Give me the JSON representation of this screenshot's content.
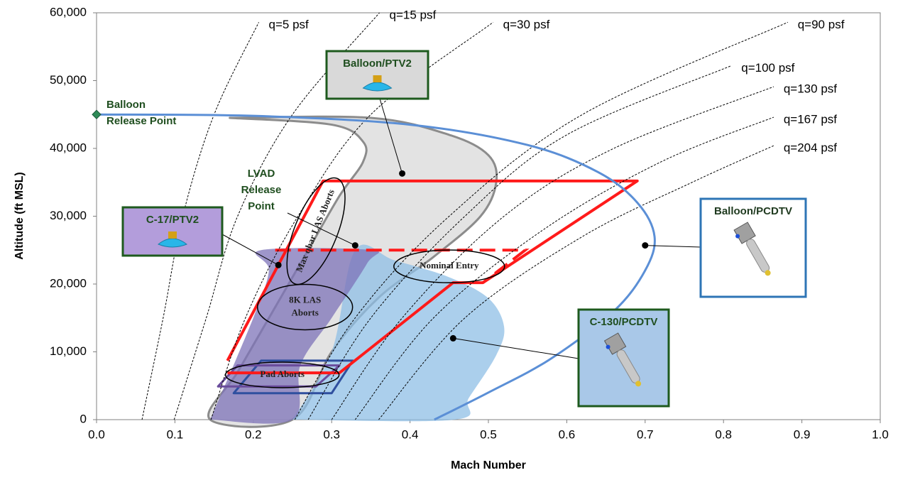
{
  "chart_data": {
    "type": "line",
    "x_label": "Mach Number",
    "y_label": "Altitude (ft MSL)",
    "xlim": [
      0,
      1
    ],
    "ylim": [
      0,
      60000
    ],
    "xticks": [
      {
        "value": 0,
        "label": "0.0"
      },
      0.1,
      0.2,
      0.3,
      0.4,
      0.5,
      0.6,
      0.7,
      0.8,
      0.9,
      {
        "value": 1,
        "label": "1.0"
      }
    ],
    "yticks": [
      0,
      {
        "value": 10000,
        "label": "10,000"
      },
      {
        "value": 20000,
        "label": "20,000"
      },
      {
        "value": 30000,
        "label": "30,000"
      },
      {
        "value": 40000,
        "label": "40,000"
      },
      {
        "value": 50000,
        "label": "50,000"
      },
      {
        "value": 60000,
        "label": "60,000"
      }
    ],
    "grid": false,
    "regions": [
      {
        "color": "#8c8c8c",
        "fill": "#d9d9d9",
        "x": [
          0.17,
          0.3,
          0.34,
          0.34,
          0.31,
          0.27,
          0.22,
          0.18,
          0.145,
          0.25,
          0.3,
          0.36,
          0.43,
          0.49,
          0.51,
          0.5,
          0.45,
          0.35
        ],
        "y": [
          44500,
          43500,
          41000,
          38000,
          33000,
          25000,
          15000,
          7000,
          0,
          0,
          10000,
          18000,
          24000,
          30000,
          35000,
          39000,
          42000,
          44500
        ]
      },
      {
        "color": "none",
        "fill": "#8fbfe6",
        "x": [
          0.25,
          0.457,
          0.475,
          0.51,
          0.52,
          0.5,
          0.45,
          0.38,
          0.33,
          0.3
        ],
        "y": [
          0,
          0,
          3200,
          9500,
          13700,
          17900,
          21000,
          23500,
          25000,
          10000
        ]
      },
      {
        "color": "none",
        "fill": "#7d73b8",
        "x": [
          0.145,
          0.2,
          0.22,
          0.21,
          0.35,
          0.345,
          0.3,
          0.26,
          0.25
        ],
        "y": [
          0,
          15000,
          22000,
          25000,
          25000,
          23000,
          15000,
          8000,
          0
        ]
      },
      {
        "color": "#2f4f9f",
        "fill": "none",
        "x": [
          0.175,
          0.21,
          0.327,
          0.3
        ],
        "y": [
          3900,
          8700,
          8700,
          3900
        ]
      },
      {
        "color": "#6a4c9c",
        "fill": "none",
        "x": [
          0.155,
          0.18,
          0.31,
          0.28
        ],
        "y": [
          4900,
          8000,
          8000,
          4900
        ]
      },
      {
        "color": "#ff1a1a",
        "fill": "none",
        "x": [
          0.167,
          0.289,
          0.69,
          0.493,
          0.455,
          0.31,
          0.167
        ],
        "y": [
          8700,
          35200,
          35200,
          20200,
          20200,
          6900,
          6900
        ]
      }
    ],
    "series": [
      {
        "name": "q=5 psf",
        "color": "#000000",
        "x": [
          0.058,
          0.085,
          0.11,
          0.15,
          0.207
        ],
        "y": [
          0,
          15000,
          30000,
          45000,
          58600
        ]
      },
      {
        "name": "q=15 psf",
        "color": "#000000",
        "x": [
          0.099,
          0.14,
          0.18,
          0.25,
          0.361
        ],
        "y": [
          0,
          15000,
          30000,
          45000,
          60000
        ]
      },
      {
        "name": "q=30 psf",
        "color": "#000000",
        "x": [
          0.146,
          0.19,
          0.257,
          0.35,
          0.506
        ],
        "y": [
          0,
          15000,
          30000,
          45000,
          58600
        ]
      },
      {
        "name": "q=90 psf",
        "color": "#000000",
        "x": [
          0.253,
          0.33,
          0.45,
          0.62,
          0.882
        ],
        "y": [
          0,
          15000,
          30000,
          45000,
          58600
        ]
      },
      {
        "name": "q=100 psf",
        "color": "#000000",
        "x": [
          0.27,
          0.35,
          0.47,
          0.6,
          0.81
        ],
        "y": [
          0,
          15000,
          30000,
          42000,
          52200
        ]
      },
      {
        "name": "q=130 psf",
        "color": "#000000",
        "x": [
          0.3,
          0.39,
          0.52,
          0.66,
          0.864
        ],
        "y": [
          0,
          15000,
          30000,
          40000,
          49100
        ]
      },
      {
        "name": "q=167 psf",
        "color": "#000000",
        "x": [
          0.33,
          0.43,
          0.57,
          0.72,
          0.864
        ],
        "y": [
          0,
          15000,
          28000,
          38000,
          44600
        ]
      },
      {
        "name": "q=204 psf",
        "color": "#000000",
        "x": [
          0.36,
          0.47,
          0.62,
          0.76,
          0.864
        ],
        "y": [
          0,
          15000,
          27000,
          35000,
          40400
        ]
      }
    ],
    "envelope": {
      "color": "#5b8fd6",
      "x": [
        0,
        0.2,
        0.4,
        0.55,
        0.64,
        0.69,
        0.712,
        0.7,
        0.66,
        0.58,
        0.5,
        0.431
      ],
      "y": [
        45000,
        44800,
        43500,
        40500,
        36500,
        32000,
        27000,
        22000,
        16000,
        9000,
        4000,
        0
      ]
    },
    "dashed": {
      "color": "#ff1a1a",
      "x": [
        0.228,
        0.547,
        0.493
      ],
      "y": [
        25000,
        25000,
        20200
      ]
    },
    "points": [
      {
        "label": [
          "Balloon",
          "Release Point"
        ],
        "x": 0,
        "y": 45000,
        "marker": "diamond",
        "color": "#2e8b57"
      },
      {
        "label": [
          "LVAD",
          "Release",
          "Point"
        ],
        "x": 0.33,
        "y": 25700,
        "marker": "dot",
        "color": "#000000"
      }
    ],
    "callouts": [
      {
        "label": "Balloon/PTV2",
        "x": 0.39,
        "y": 36300
      },
      {
        "label": "C-17/PTV2",
        "x": 0.232,
        "y": 22800
      },
      {
        "label": "Balloon/PCDTV",
        "x": 0.7,
        "y": 25700
      },
      {
        "label": "C-130/PCDTV",
        "x": 0.455,
        "y": 12000
      }
    ],
    "annotations": [
      {
        "text": [
          "Max qbar LAS Aborts"
        ],
        "x": 0.28,
        "y": 27800
      },
      {
        "text": [
          "8K LAS",
          "Aborts"
        ],
        "x": 0.266,
        "y": 16600
      },
      {
        "text": [
          "Nominal Entry"
        ],
        "x": 0.45,
        "y": 22600
      },
      {
        "text": [
          "Pad Aborts"
        ],
        "x": 0.237,
        "y": 6600
      }
    ]
  }
}
